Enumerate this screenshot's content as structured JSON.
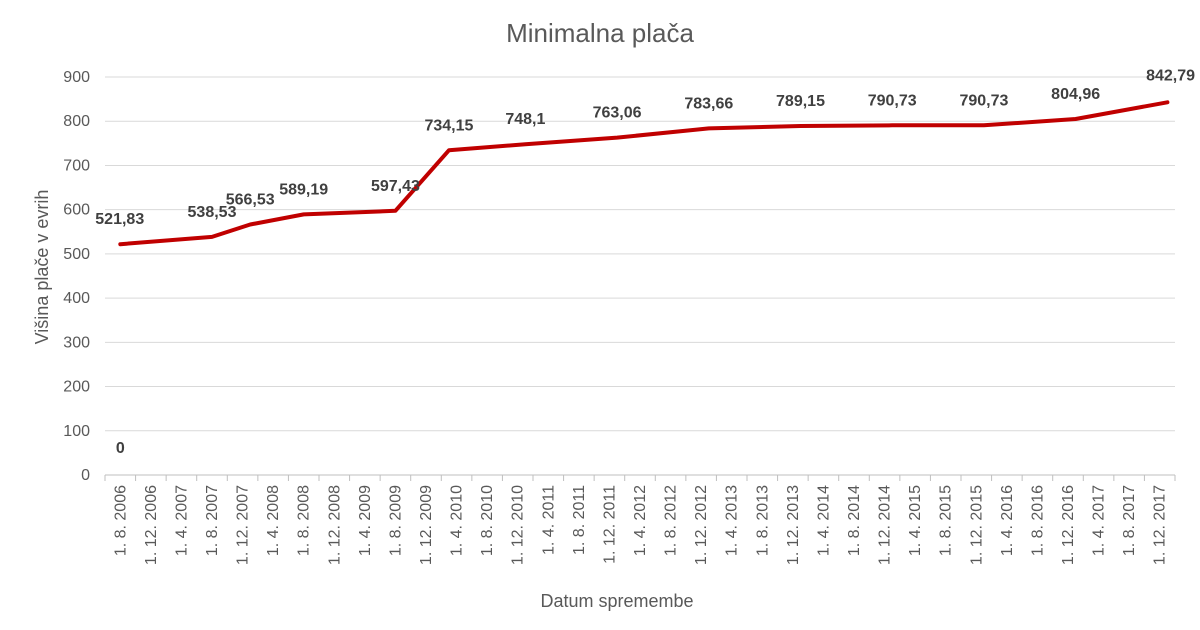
{
  "chart_data": {
    "type": "line",
    "title": "Minimalna plača",
    "xlabel": "Datum  spremembe",
    "ylabel": "Višina plače v evrih",
    "ylim": [
      0,
      900
    ],
    "yticks": [
      0,
      100,
      200,
      300,
      400,
      500,
      600,
      700,
      800,
      900
    ],
    "grid": true,
    "legend": "none",
    "line_color": "#c00000",
    "x_ticks": [
      "1. 8. 2006",
      "1. 12. 2006",
      "1. 4. 2007",
      "1. 8. 2007",
      "1. 12. 2007",
      "1. 4. 2008",
      "1. 8. 2008",
      "1. 12. 2008",
      "1. 4. 2009",
      "1. 8. 2009",
      "1. 12. 2009",
      "1. 4. 2010",
      "1. 8. 2010",
      "1. 12. 2010",
      "1. 4. 2011",
      "1. 8. 2011",
      "1. 12. 2011",
      "1. 4. 2012",
      "1. 8. 2012",
      "1. 12. 2012",
      "1. 4. 2013",
      "1. 8. 2013",
      "1. 12. 2013",
      "1. 4. 2014",
      "1. 8. 2014",
      "1. 12. 2014",
      "1. 4. 2015",
      "1. 8. 2015",
      "1. 12. 2015",
      "1. 4. 2016",
      "1. 8. 2016",
      "1. 12. 2016",
      "1. 4. 2017",
      "1. 8. 2017",
      "1. 12. 2017"
    ],
    "points": [
      {
        "x": "2006-08-01",
        "y": 521.83,
        "label": "521,83"
      },
      {
        "x": "2007-08-01",
        "y": 538.53,
        "label": "538,53"
      },
      {
        "x": "2008-01-01",
        "y": 566.53,
        "label": "566,53"
      },
      {
        "x": "2008-08-01",
        "y": 589.19,
        "label": "589,19"
      },
      {
        "x": "2009-08-01",
        "y": 597.43,
        "label": "597,43"
      },
      {
        "x": "2010-03-01",
        "y": 734.15,
        "label": "734,15"
      },
      {
        "x": "2011-01-01",
        "y": 748.1,
        "label": "748,1"
      },
      {
        "x": "2012-01-01",
        "y": 763.06,
        "label": "763,06"
      },
      {
        "x": "2013-01-01",
        "y": 783.66,
        "label": "783,66"
      },
      {
        "x": "2014-01-01",
        "y": 789.15,
        "label": "789,15"
      },
      {
        "x": "2015-01-01",
        "y": 790.73,
        "label": "790,73"
      },
      {
        "x": "2016-01-01",
        "y": 790.73,
        "label": "790,73"
      },
      {
        "x": "2017-01-01",
        "y": 804.96,
        "label": "804,96"
      },
      {
        "x": "2018-01-01",
        "y": 842.79,
        "label": "842,79"
      }
    ],
    "extra_labels": [
      {
        "x": "2006-08-01",
        "y": 0,
        "label": "0"
      }
    ]
  }
}
